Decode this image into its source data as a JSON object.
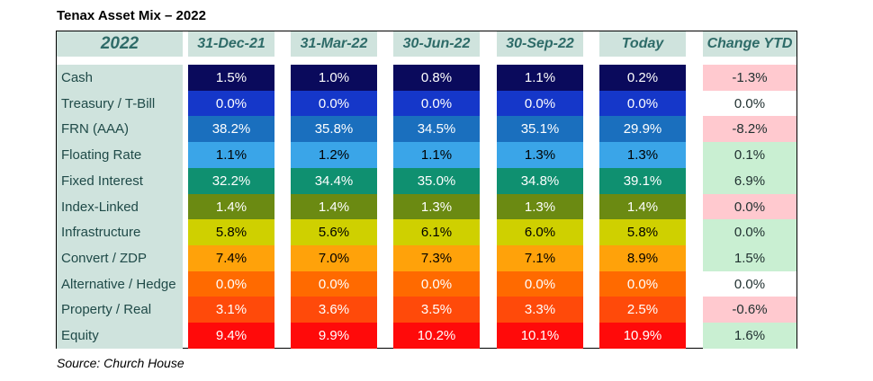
{
  "title": "Tenax Asset Mix – 2022",
  "source": "Source: Church House",
  "table": {
    "corner": "2022",
    "columns": [
      "31-Dec-21",
      "31-Mar-22",
      "30-Jun-22",
      "30-Sep-22",
      "Today"
    ],
    "change_header": "Change YTD",
    "rows": [
      {
        "label": "Cash",
        "values": [
          "1.5%",
          "1.0%",
          "0.8%",
          "1.1%",
          "0.2%"
        ],
        "change": "-1.3%",
        "color": "#0a0a5c",
        "text_color": "#ffffff",
        "change_status": "negative"
      },
      {
        "label": "Treasury / T-Bill",
        "values": [
          "0.0%",
          "0.0%",
          "0.0%",
          "0.0%",
          "0.0%"
        ],
        "change": "0.0%",
        "color": "#1537c9",
        "text_color": "#ffffff",
        "change_status": "neutral"
      },
      {
        "label": "FRN (AAA)",
        "values": [
          "38.2%",
          "35.8%",
          "34.5%",
          "35.1%",
          "29.9%"
        ],
        "change": "-8.2%",
        "color": "#1a6fbe",
        "text_color": "#ffffff",
        "change_status": "negative"
      },
      {
        "label": "Floating Rate",
        "values": [
          "1.1%",
          "1.2%",
          "1.1%",
          "1.3%",
          "1.3%"
        ],
        "change": "0.1%",
        "color": "#3aa5e8",
        "text_color": "#000000",
        "change_status": "positive"
      },
      {
        "label": "Fixed Interest",
        "values": [
          "32.2%",
          "34.4%",
          "35.0%",
          "34.8%",
          "39.1%"
        ],
        "change": "6.9%",
        "color": "#0f9070",
        "text_color": "#ffffff",
        "change_status": "positive"
      },
      {
        "label": "Index-Linked",
        "values": [
          "1.4%",
          "1.4%",
          "1.3%",
          "1.3%",
          "1.4%"
        ],
        "change": "0.0%",
        "color": "#6b8a12",
        "text_color": "#ffffff",
        "change_status": "negative"
      },
      {
        "label": "Infrastructure",
        "values": [
          "5.8%",
          "5.6%",
          "6.1%",
          "6.0%",
          "5.8%"
        ],
        "change": "0.0%",
        "color": "#cfd000",
        "text_color": "#000000",
        "change_status": "positive"
      },
      {
        "label": "Convert / ZDP",
        "values": [
          "7.4%",
          "7.0%",
          "7.3%",
          "7.1%",
          "8.9%"
        ],
        "change": "1.5%",
        "color": "#ffa20a",
        "text_color": "#000000",
        "change_status": "positive"
      },
      {
        "label": "Alternative / Hedge",
        "values": [
          "0.0%",
          "0.0%",
          "0.0%",
          "0.0%",
          "0.0%"
        ],
        "change": "0.0%",
        "color": "#ff6a00",
        "text_color": "#ffffff",
        "change_status": "neutral"
      },
      {
        "label": "Property / Real",
        "values": [
          "3.1%",
          "3.6%",
          "3.5%",
          "3.3%",
          "2.5%"
        ],
        "change": "-0.6%",
        "color": "#ff4a0a",
        "text_color": "#ffffff",
        "change_status": "negative"
      },
      {
        "label": "Equity",
        "values": [
          "9.4%",
          "9.9%",
          "10.2%",
          "10.1%",
          "10.9%"
        ],
        "change": "1.6%",
        "color": "#ff0a0a",
        "text_color": "#ffffff",
        "change_status": "positive"
      }
    ],
    "status_colors": {
      "negative": "#ffc9cf",
      "positive": "#c9efd2",
      "neutral": "#ffffff"
    },
    "change_text_color": "#1f2f2f"
  }
}
